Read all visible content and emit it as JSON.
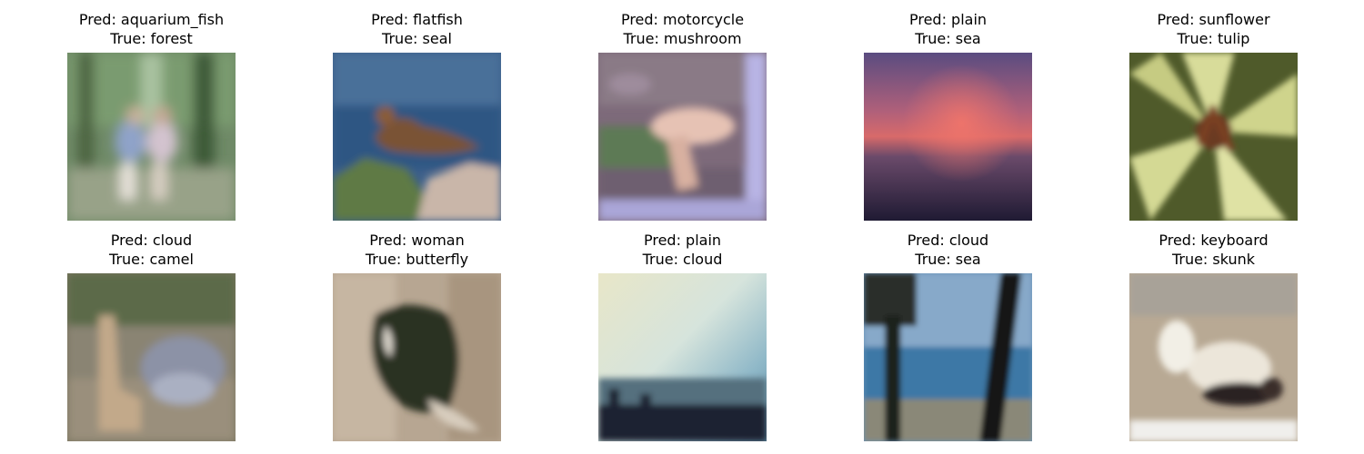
{
  "grid": {
    "rows": [
      {
        "cells": [
          {
            "pred": "Pred: aquarium_fish",
            "true": "True: forest",
            "image": "forest-people-photo"
          },
          {
            "pred": "Pred: flatfish",
            "true": "True: seal",
            "image": "seal-on-rock-photo"
          },
          {
            "pred": "Pred: motorcycle",
            "true": "True: mushroom",
            "image": "mushroom-photo"
          },
          {
            "pred": "Pred: plain",
            "true": "True: sea",
            "image": "sunset-sea-photo"
          },
          {
            "pred": "Pred: sunflower",
            "true": "True: tulip",
            "image": "lily-flower-photo"
          }
        ]
      },
      {
        "cells": [
          {
            "pred": "Pred: cloud",
            "true": "True: camel",
            "image": "camel-photo"
          },
          {
            "pred": "Pred: woman",
            "true": "True: butterfly",
            "image": "butterfly-photo"
          },
          {
            "pred": "Pred: plain",
            "true": "True: cloud",
            "image": "cloudy-sky-photo"
          },
          {
            "pred": "Pred: cloud",
            "true": "True: sea",
            "image": "sea-trees-photo"
          },
          {
            "pred": "Pred: keyboard",
            "true": "True: skunk",
            "image": "skunk-photo"
          }
        ]
      }
    ]
  }
}
